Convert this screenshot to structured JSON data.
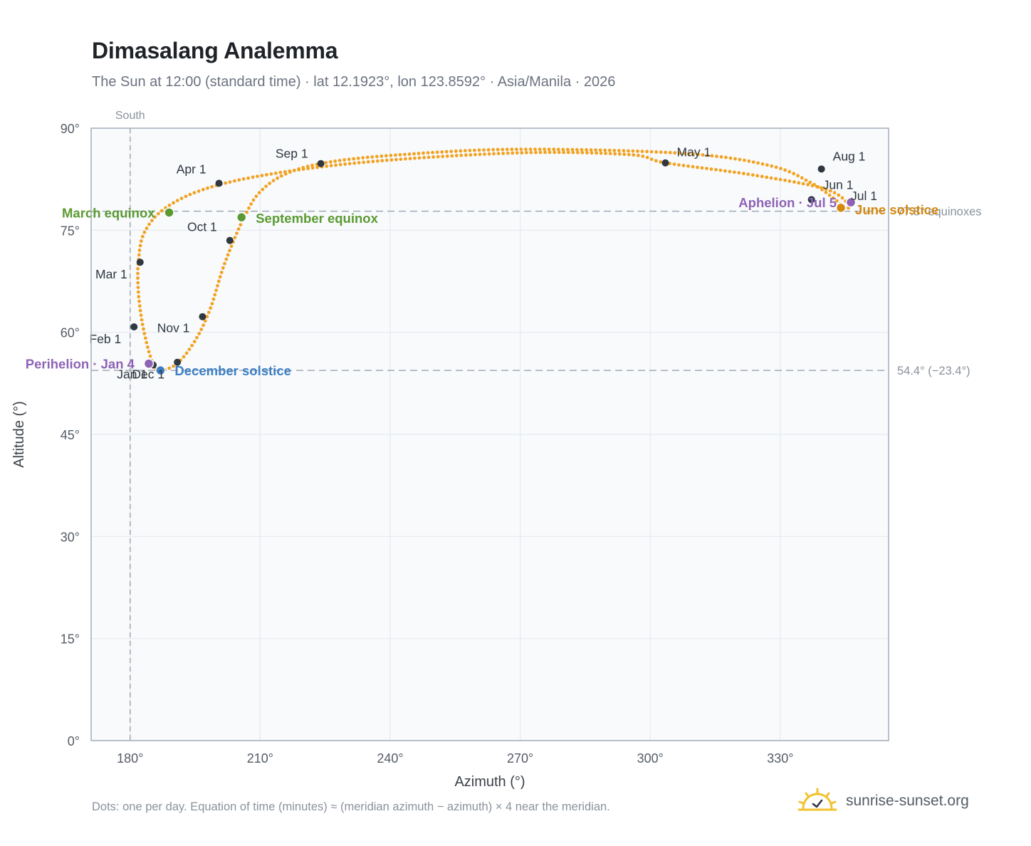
{
  "title": "Dimasalang Analemma",
  "subtitle": "The Sun at 12:00 (standard time) · lat 12.1923°, lon 123.8592° · Asia/Manila · 2026",
  "footnote": "Dots: one per day. Equation of time (minutes) ≈ (meridian azimuth − azimuth) × 4 near the meridian.",
  "brand": "sunrise-sunset.org",
  "chart_data": {
    "type": "scatter",
    "xlabel": "Azimuth (°)",
    "ylabel": "Altitude (°)",
    "xlim": [
      171,
      355
    ],
    "ylim": [
      0,
      90
    ],
    "x_ticks": [
      180,
      210,
      240,
      270,
      300,
      330
    ],
    "x_tick_labels": [
      "180°",
      "210°",
      "240°",
      "270°",
      "300°",
      "330°"
    ],
    "y_ticks": [
      0,
      15,
      30,
      45,
      60,
      75,
      90
    ],
    "y_tick_labels": [
      "0°",
      "15°",
      "30°",
      "45°",
      "60°",
      "75°",
      "90°"
    ],
    "grid": true,
    "colors": {
      "path": "#f2a323",
      "month": "#2f3740",
      "equinox": "#5b9a32",
      "june_solstice": "#d4880f",
      "december_solstice": "#3d7fc4",
      "apsis": "#8e63b5",
      "guide": "#9aa3ad",
      "plot_bg": "#f8fafc",
      "grid": "#e6e9ee"
    },
    "meridian": {
      "azimuth": 180,
      "label": "South"
    },
    "reference_lines": [
      {
        "altitude": 77.8,
        "label": "77.8° equinoxes"
      },
      {
        "altitude": 54.4,
        "label": "54.4° (−23.4°)"
      }
    ],
    "daily_points": [
      [
        185.3,
        55.2
      ],
      [
        184.1,
        57.7
      ],
      [
        182.8,
        61.4
      ],
      [
        181.9,
        65.9
      ],
      [
        181.9,
        70.4
      ],
      [
        183.3,
        74.7
      ],
      [
        188.2,
        78.3
      ],
      [
        197.9,
        81.2
      ],
      [
        213.8,
        83.4
      ],
      [
        237.7,
        85.2
      ],
      [
        271.0,
        86.4
      ],
      [
        295.4,
        86.1
      ],
      [
        303.5,
        84.9
      ],
      [
        322.9,
        83.2
      ],
      [
        340.2,
        81.1
      ],
      [
        345.8,
        78.8
      ],
      [
        345.0,
        78.3
      ],
      [
        342.5,
        79.6
      ],
      [
        337.0,
        82.0
      ],
      [
        327.6,
        84.5
      ],
      [
        307.6,
        86.3
      ],
      [
        269.2,
        86.9
      ],
      [
        240.3,
        86.0
      ],
      [
        224.0,
        84.8
      ],
      [
        215.0,
        83.0
      ],
      [
        209.5,
        80.3
      ],
      [
        206.4,
        77.0
      ],
      [
        203.9,
        73.5
      ],
      [
        201.2,
        69.0
      ],
      [
        198.5,
        63.5
      ],
      [
        195.2,
        59.0
      ],
      [
        191.0,
        55.5
      ],
      [
        187.0,
        54.4
      ],
      [
        185.3,
        55.2
      ]
    ],
    "months": [
      {
        "label": "Jan 1",
        "azimuth": 185.3,
        "altitude": 55.2
      },
      {
        "label": "Feb 1",
        "azimuth": 180.9,
        "altitude": 60.8
      },
      {
        "label": "Mar 1",
        "azimuth": 182.3,
        "altitude": 70.3
      },
      {
        "label": "Apr 1",
        "azimuth": 200.5,
        "altitude": 81.9
      },
      {
        "label": "May 1",
        "azimuth": 303.5,
        "altitude": 84.9
      },
      {
        "label": "Jun 1",
        "azimuth": 337.2,
        "altitude": 79.5
      },
      {
        "label": "Jul 1",
        "azimuth": 344.0,
        "altitude": 78.2
      },
      {
        "label": "Aug 1",
        "azimuth": 339.5,
        "altitude": 84.0
      },
      {
        "label": "Sep 1",
        "azimuth": 224.0,
        "altitude": 84.8
      },
      {
        "label": "Oct 1",
        "azimuth": 203.0,
        "altitude": 73.5
      },
      {
        "label": "Nov 1",
        "azimuth": 196.7,
        "altitude": 62.3
      },
      {
        "label": "Dec 1",
        "azimuth": 190.9,
        "altitude": 55.6
      }
    ],
    "events": [
      {
        "label": "March equinox",
        "azimuth": 189.0,
        "altitude": 77.6,
        "kind": "equinox"
      },
      {
        "label": "September equinox",
        "azimuth": 205.7,
        "altitude": 76.9,
        "kind": "equinox"
      },
      {
        "label": "June solstice",
        "azimuth": 344.0,
        "altitude": 78.3,
        "kind": "june_solstice"
      },
      {
        "label": "December solstice",
        "azimuth": 187.0,
        "altitude": 54.4,
        "kind": "december_solstice"
      },
      {
        "label": "Perihelion · Jan 4",
        "azimuth": 184.3,
        "altitude": 55.4,
        "kind": "apsis"
      },
      {
        "label": "Aphelion · Jul 5",
        "azimuth": 346.3,
        "altitude": 79.1,
        "kind": "apsis"
      }
    ]
  }
}
